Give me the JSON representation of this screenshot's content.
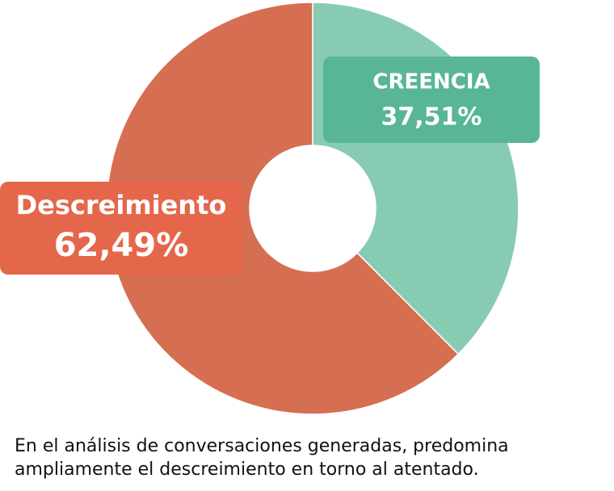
{
  "chart_data": {
    "type": "donut",
    "categories": [
      "CREENCIA",
      "Descreimiento"
    ],
    "values": [
      37.51,
      62.49
    ],
    "value_labels": [
      "37,51%",
      "62,49%"
    ],
    "colors": [
      "#88cbb3",
      "#d66e52"
    ],
    "label_colors": [
      "#58b598",
      "#e5674b"
    ]
  },
  "caption": [
    "En el análisis de conversaciones generadas, predomina",
    "ampliamente el descreimiento en torno al atentado."
  ]
}
